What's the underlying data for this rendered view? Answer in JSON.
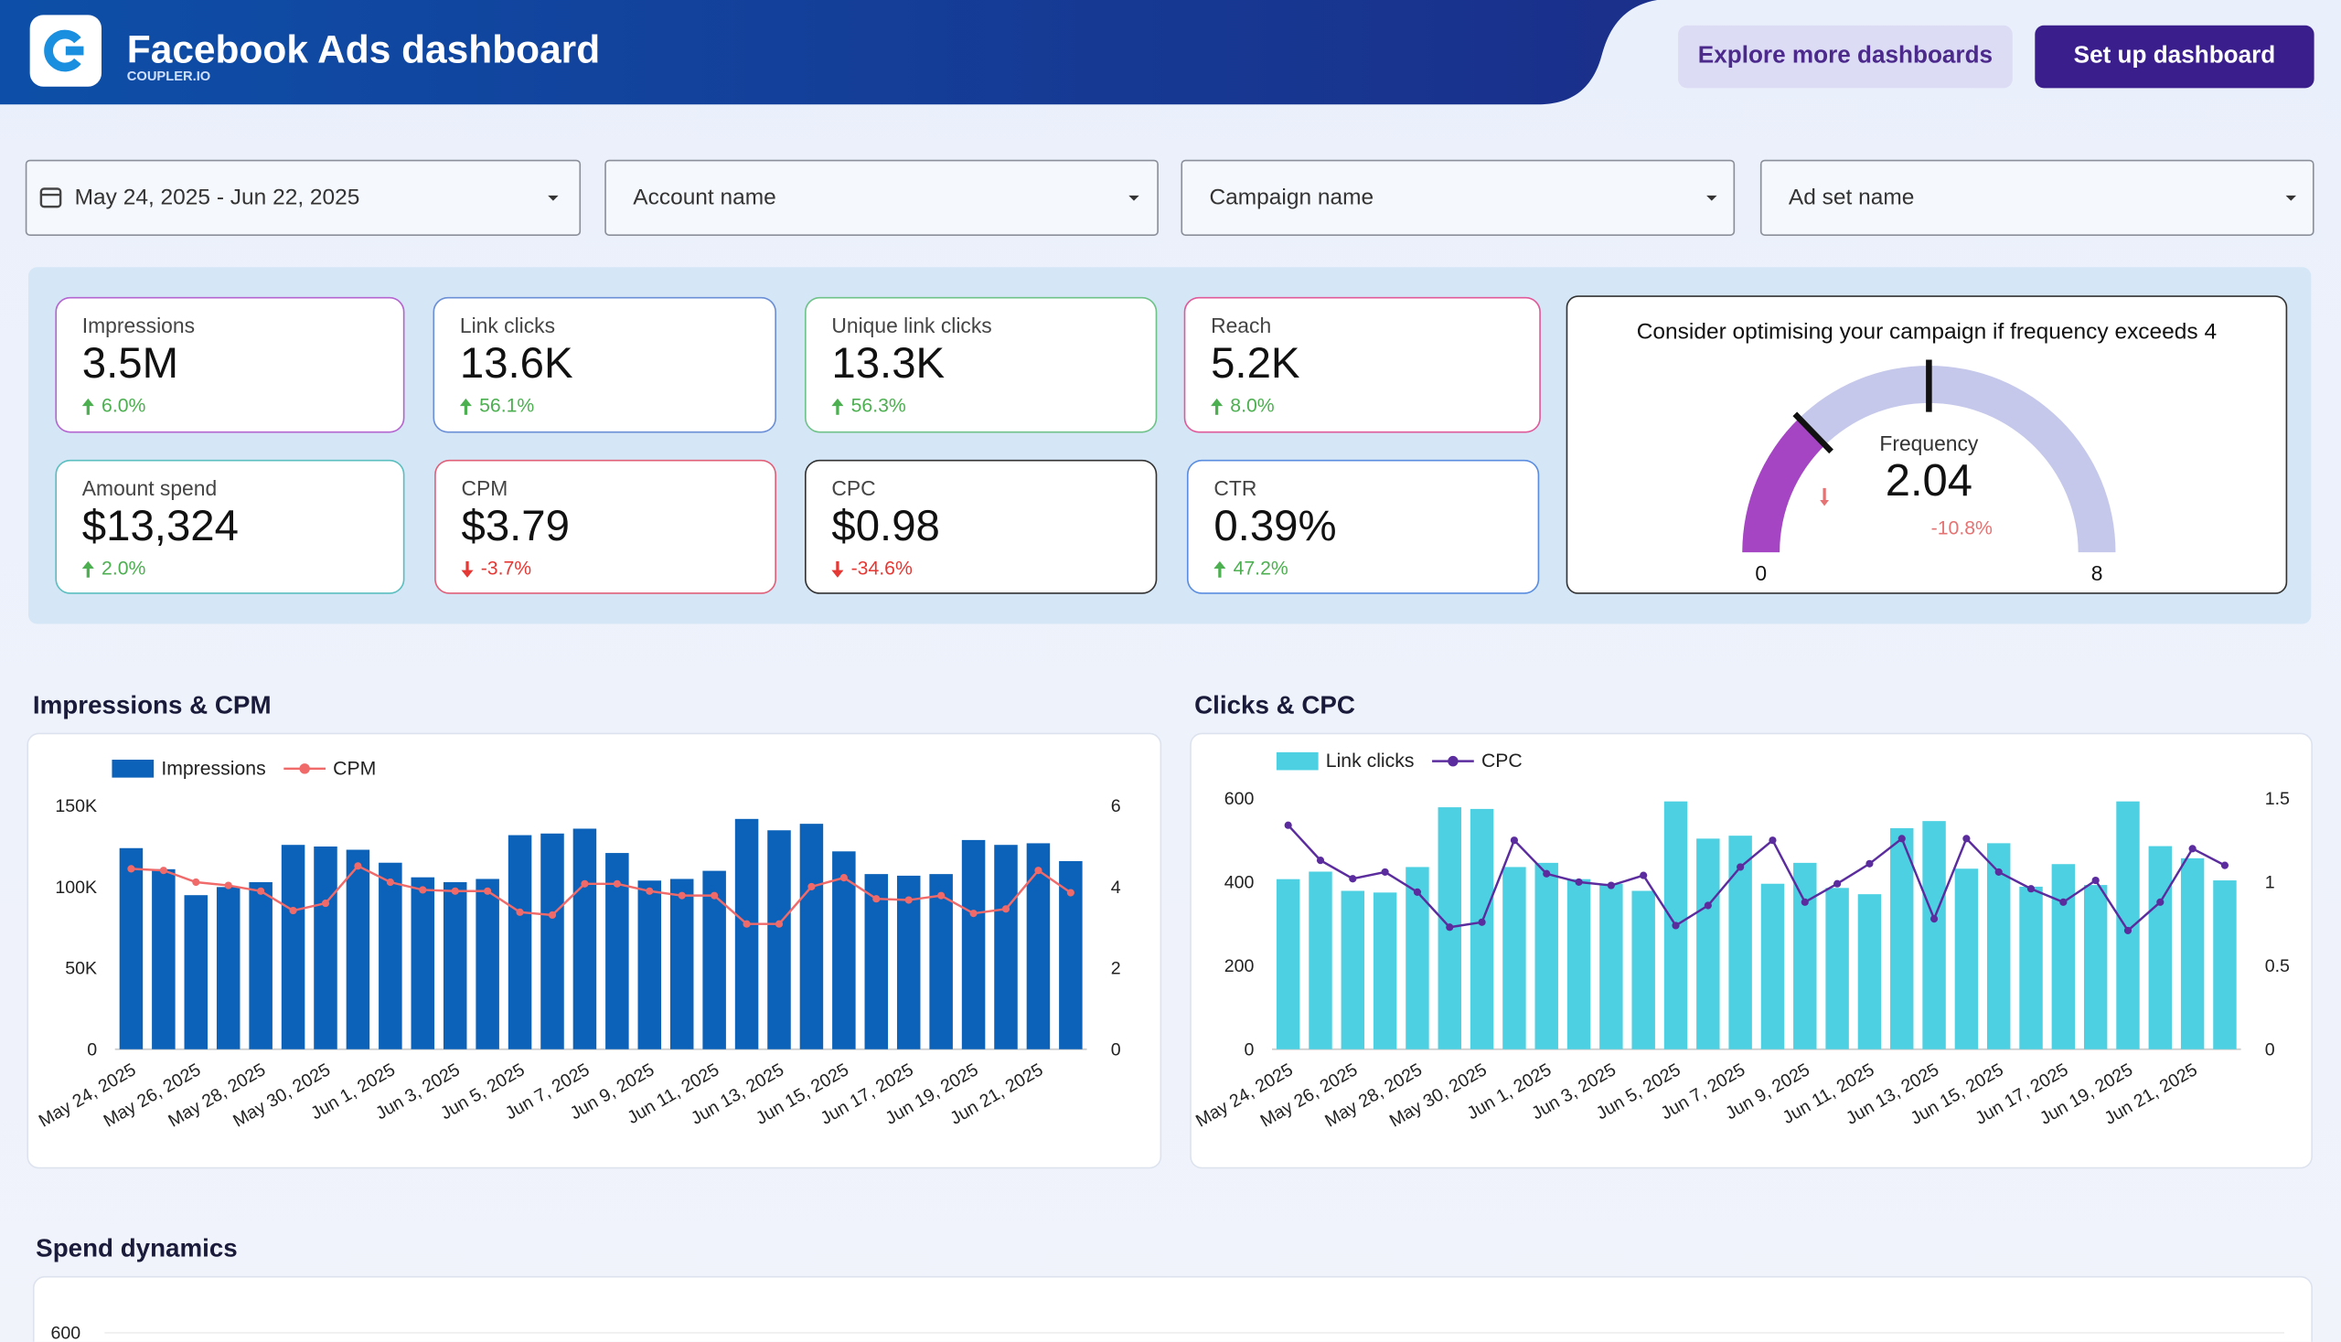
{
  "header": {
    "title": "Facebook Ads dashboard",
    "subtitle": "COUPLER.IO",
    "buttons": [
      "Explore more dashboards",
      "Set up dashboard"
    ]
  },
  "filters": [
    "May 24, 2025 - Jun 22, 2025",
    "Account name",
    "Campaign name",
    "Ad set name"
  ],
  "kpis": [
    {
      "label": "Impressions",
      "value": "3.5M",
      "change": "6.0%",
      "trend": "up",
      "color": "#b565d0"
    },
    {
      "label": "Link clicks",
      "value": "13.6K",
      "change": "56.1%",
      "trend": "up",
      "color": "#6b8fd6"
    },
    {
      "label": "Unique link clicks",
      "value": "13.3K",
      "change": "56.3%",
      "trend": "up",
      "color": "#6fc38a"
    },
    {
      "label": "Reach",
      "value": "5.2K",
      "change": "8.0%",
      "trend": "up",
      "color": "#e05a9a"
    },
    {
      "label": "Amount spend",
      "value": "$13,324",
      "change": "2.0%",
      "trend": "up",
      "color": "#5bbfc0"
    },
    {
      "label": "CPM",
      "value": "$3.79",
      "change": "-3.7%",
      "trend": "down",
      "color": "#e0607a"
    },
    {
      "label": "CPC",
      "value": "$0.98",
      "change": "-34.6%",
      "trend": "down",
      "color": "#333333"
    },
    {
      "label": "CTR",
      "value": "0.39%",
      "change": "47.2%",
      "trend": "up",
      "color": "#5a8de0"
    }
  ],
  "gauge": {
    "title": "Consider optimising your campaign if frequency exceeds 4",
    "label": "Frequency",
    "value": 2.04,
    "change": "-10.8%",
    "min": 0,
    "max": 8,
    "target": 4,
    "color": "#a545c4",
    "track_color": "#c5c8ea"
  },
  "chart_data": [
    {
      "type": "combo",
      "title": "Impressions & CPM",
      "categories": [
        "May 24, 2025",
        null,
        "May 26, 2025",
        null,
        "May 28, 2025",
        null,
        "May 30, 2025",
        null,
        "Jun 1, 2025",
        null,
        "Jun 3, 2025",
        null,
        "Jun 5, 2025",
        null,
        "Jun 7, 2025",
        null,
        "Jun 9, 2025",
        null,
        "Jun 11, 2025",
        null,
        "Jun 13, 2025",
        null,
        "Jun 15, 2025",
        null,
        "Jun 17, 2025",
        null,
        "Jun 19, 2025",
        null,
        "Jun 21, 2025",
        null
      ],
      "series": [
        {
          "name": "Impressions",
          "type": "bar",
          "color": "#0b62b8",
          "values": [
            124000,
            111000,
            95000,
            100000,
            103000,
            126000,
            125000,
            123000,
            115000,
            106000,
            103000,
            105000,
            132000,
            133000,
            136000,
            121000,
            104000,
            105000,
            110000,
            142000,
            135000,
            139000,
            122000,
            108000,
            107000,
            108000,
            129000,
            126000,
            127000,
            116000
          ]
        },
        {
          "name": "CPM",
          "type": "line",
          "axis": "y2",
          "color": "#f06a6a",
          "values": [
            4.45,
            4.41,
            4.12,
            4.04,
            3.9,
            3.42,
            3.6,
            4.52,
            4.12,
            3.93,
            3.9,
            3.9,
            3.38,
            3.31,
            4.08,
            4.08,
            3.9,
            3.79,
            3.79,
            3.09,
            3.09,
            4.01,
            4.23,
            3.71,
            3.68,
            3.79,
            3.35,
            3.46,
            4.41,
            3.86
          ]
        }
      ],
      "ylim": [
        0,
        150000
      ],
      "yticks": [
        0,
        {
          "value": 50000,
          "label": "50K"
        },
        {
          "value": 100000,
          "label": "100K"
        },
        {
          "value": 150000,
          "label": "150K"
        }
      ],
      "y2lim": [
        0,
        6
      ],
      "y2ticks": [
        0,
        2,
        4,
        6
      ]
    },
    {
      "type": "combo",
      "title": "Clicks & CPC",
      "categories": [
        "May 24, 2025",
        null,
        "May 26, 2025",
        null,
        "May 28, 2025",
        null,
        "May 30, 2025",
        null,
        "Jun 1, 2025",
        null,
        "Jun 3, 2025",
        null,
        "Jun 5, 2025",
        null,
        "Jun 7, 2025",
        null,
        "Jun 9, 2025",
        null,
        "Jun 11, 2025",
        null,
        "Jun 13, 2025",
        null,
        "Jun 15, 2025",
        null,
        "Jun 17, 2025",
        null,
        "Jun 19, 2025",
        null,
        "Jun 21, 2025",
        null
      ],
      "series": [
        {
          "name": "Link clicks",
          "type": "bar",
          "color": "#4dd0e1",
          "values": [
            407,
            425,
            379,
            375,
            436,
            579,
            575,
            436,
            446,
            407,
            396,
            379,
            593,
            504,
            511,
            396,
            446,
            386,
            371,
            529,
            546,
            432,
            493,
            389,
            443,
            393,
            593,
            486,
            457,
            404
          ]
        },
        {
          "name": "CPC",
          "type": "line",
          "axis": "y2",
          "color": "#5b2c9e",
          "values": [
            1.34,
            1.13,
            1.02,
            1.06,
            0.94,
            0.73,
            0.76,
            1.25,
            1.05,
            1.0,
            0.98,
            1.04,
            0.74,
            0.86,
            1.09,
            1.25,
            0.88,
            0.99,
            1.11,
            1.26,
            0.78,
            1.26,
            1.06,
            0.96,
            0.88,
            1.01,
            0.71,
            0.88,
            1.2,
            1.1
          ]
        }
      ],
      "ylim": [
        0,
        600
      ],
      "yticks": [
        0,
        200,
        400,
        600
      ],
      "y2lim": [
        0,
        1.5
      ],
      "y2ticks": [
        0,
        0.5,
        1,
        1.5
      ]
    },
    {
      "type": "line",
      "title": "Spend dynamics",
      "yticks": [
        600
      ]
    }
  ]
}
